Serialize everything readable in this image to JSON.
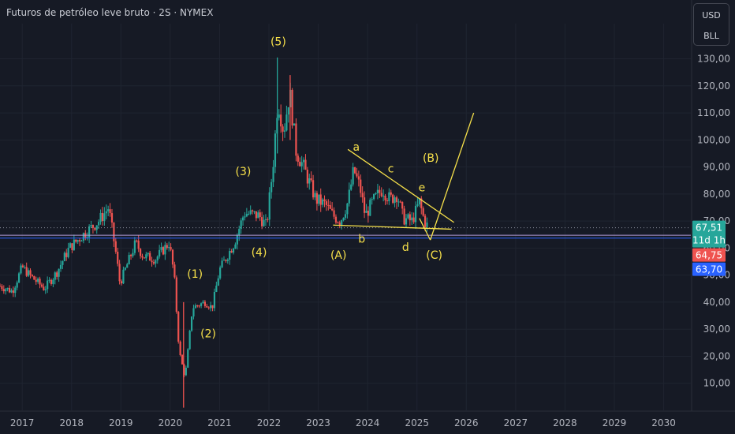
{
  "header": {
    "title": "Futuros de petróleo leve bruto · 2S · NYMEX",
    "currency": "USD",
    "unit": "BLL"
  },
  "colors": {
    "background": "#161a25",
    "up": "#26a69a",
    "down": "#ef5350",
    "annotation": "#f7e14a",
    "grid": "#1f2430",
    "axis_text": "#b2b5be",
    "blue_line": "#2962ff",
    "purple_line": "#b39ddb"
  },
  "chart_data": {
    "type": "candlestick",
    "interval": "2 weeks",
    "xlim": [
      2016.55,
      2030.55
    ],
    "ylim": [
      0,
      143
    ],
    "y_ticks": [
      "10,00",
      "20,00",
      "30,00",
      "40,00",
      "50,00",
      "60,00",
      "70,00",
      "80,00",
      "90,00",
      "100,00",
      "110,00",
      "120,00",
      "130,00"
    ],
    "x_ticks": [
      "2017",
      "2018",
      "2019",
      "2020",
      "2021",
      "2022",
      "2023",
      "2024",
      "2025",
      "2026",
      "2027",
      "2028",
      "2029",
      "2030"
    ],
    "anchors": [
      [
        2016.55,
        46
      ],
      [
        2016.8,
        44
      ],
      [
        2017.0,
        53
      ],
      [
        2017.15,
        50
      ],
      [
        2017.45,
        45
      ],
      [
        2017.7,
        51
      ],
      [
        2017.95,
        60
      ],
      [
        2018.3,
        66
      ],
      [
        2018.55,
        70
      ],
      [
        2018.75,
        75
      ],
      [
        2018.9,
        58
      ],
      [
        2018.98,
        47
      ],
      [
        2019.3,
        62
      ],
      [
        2019.45,
        57
      ],
      [
        2019.7,
        56
      ],
      [
        2019.98,
        62
      ],
      [
        2020.08,
        50
      ],
      [
        2020.18,
        22
      ],
      [
        2020.3,
        12
      ],
      [
        2020.45,
        38
      ],
      [
        2020.7,
        40
      ],
      [
        2020.85,
        38
      ],
      [
        2021.0,
        52
      ],
      [
        2021.3,
        62
      ],
      [
        2021.5,
        73
      ],
      [
        2021.8,
        72
      ],
      [
        2021.95,
        68
      ],
      [
        2022.08,
        90
      ],
      [
        2022.18,
        115
      ],
      [
        2022.3,
        103
      ],
      [
        2022.42,
        118
      ],
      [
        2022.55,
        96
      ],
      [
        2022.7,
        90
      ],
      [
        2022.95,
        78
      ],
      [
        2023.15,
        76
      ],
      [
        2023.3,
        72
      ],
      [
        2023.45,
        70
      ],
      [
        2023.6,
        77
      ],
      [
        2023.72,
        89
      ],
      [
        2023.85,
        82
      ],
      [
        2023.95,
        72
      ],
      [
        2024.1,
        77
      ],
      [
        2024.3,
        82
      ],
      [
        2024.45,
        78
      ],
      [
        2024.6,
        80
      ],
      [
        2024.72,
        71
      ],
      [
        2024.9,
        70
      ],
      [
        2025.05,
        77
      ],
      [
        2025.15,
        70
      ],
      [
        2025.22,
        68
      ]
    ],
    "annotations": [
      {
        "label": "(1)",
        "x": 2020.5,
        "y": 49
      },
      {
        "label": "(2)",
        "x": 2020.77,
        "y": 27
      },
      {
        "label": "(3)",
        "x": 2021.48,
        "y": 87
      },
      {
        "label": "(4)",
        "x": 2021.8,
        "y": 57
      },
      {
        "label": "(5)",
        "x": 2022.19,
        "y": 135
      },
      {
        "label": "(A)",
        "x": 2023.41,
        "y": 56
      },
      {
        "label": "b",
        "x": 2023.88,
        "y": 62
      },
      {
        "label": "a",
        "x": 2023.77,
        "y": 96
      },
      {
        "label": "c",
        "x": 2024.47,
        "y": 88
      },
      {
        "label": "d",
        "x": 2024.77,
        "y": 59
      },
      {
        "label": "e",
        "x": 2025.1,
        "y": 81
      },
      {
        "label": "(B)",
        "x": 2025.28,
        "y": 92
      },
      {
        "label": "(C)",
        "x": 2025.35,
        "y": 56
      }
    ],
    "lines": [
      {
        "name": "triangle-upper",
        "points": [
          [
            2023.6,
            96.5
          ],
          [
            2025.75,
            69.5
          ]
        ]
      },
      {
        "name": "triangle-lower",
        "points": [
          [
            2023.3,
            68.5
          ],
          [
            2025.7,
            67
          ]
        ]
      },
      {
        "name": "wave-c",
        "points": [
          [
            2025.05,
            71
          ],
          [
            2025.27,
            63
          ]
        ]
      },
      {
        "name": "projection",
        "points": [
          [
            2025.27,
            63
          ],
          [
            2026.15,
            110
          ]
        ]
      }
    ],
    "price_labels": [
      {
        "text": "67,51",
        "sub": "11d 1h",
        "value": 67.51,
        "color": "#26a69a"
      },
      {
        "text": "64,75",
        "value": 64.75,
        "color": "#ef5350"
      },
      {
        "text": "63,70",
        "value": 63.7,
        "color": "#2962ff"
      }
    ],
    "reference_lines": [
      {
        "value": 67.51,
        "style": "dotted",
        "color": "#8a8f9c"
      },
      {
        "value": 64.75,
        "style": "solid",
        "color": "#b39ddb"
      },
      {
        "value": 63.7,
        "style": "solid",
        "color": "#2962ff"
      }
    ]
  }
}
